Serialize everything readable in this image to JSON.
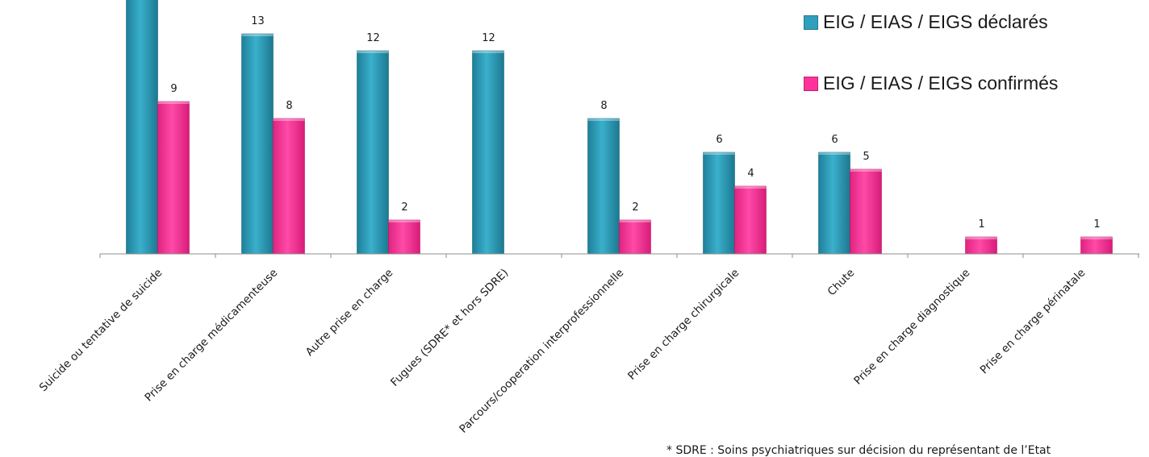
{
  "chart_data": {
    "type": "bar",
    "categories": [
      "Suicide ou tentative de suicide",
      "Prise en charge médicamenteuse",
      "Autre prise en charge",
      "Fugues (SDRE* et hors SDRE)",
      "Parcours/cooperation interprofessionnelle",
      "Prise en charge chirurgicale",
      "Chute",
      "Prise en charge diagnostique",
      "Prise en charge périnatale"
    ],
    "series": [
      {
        "name": "EIG / EIAS / EIGS déclarés",
        "color": "#2f9fbd",
        "values": [
          16,
          13,
          12,
          12,
          8,
          6,
          6,
          0,
          0
        ],
        "labels": [
          "",
          "13",
          "12",
          "12",
          "8",
          "6",
          "6",
          "",
          ""
        ]
      },
      {
        "name": "EIG / EIAS / EIGS confirmés",
        "color": "#ff3399",
        "values": [
          9,
          8,
          2,
          0,
          2,
          4,
          5,
          1,
          1
        ],
        "labels": [
          "9",
          "8",
          "2",
          "",
          "2",
          "4",
          "5",
          "1",
          "1"
        ]
      }
    ],
    "ylim": [
      0,
      16
    ],
    "grid": false,
    "legend_position": "top-right"
  },
  "footnote": "* SDRE : Soins psychiatriques sur décision du représentant de l’Etat"
}
